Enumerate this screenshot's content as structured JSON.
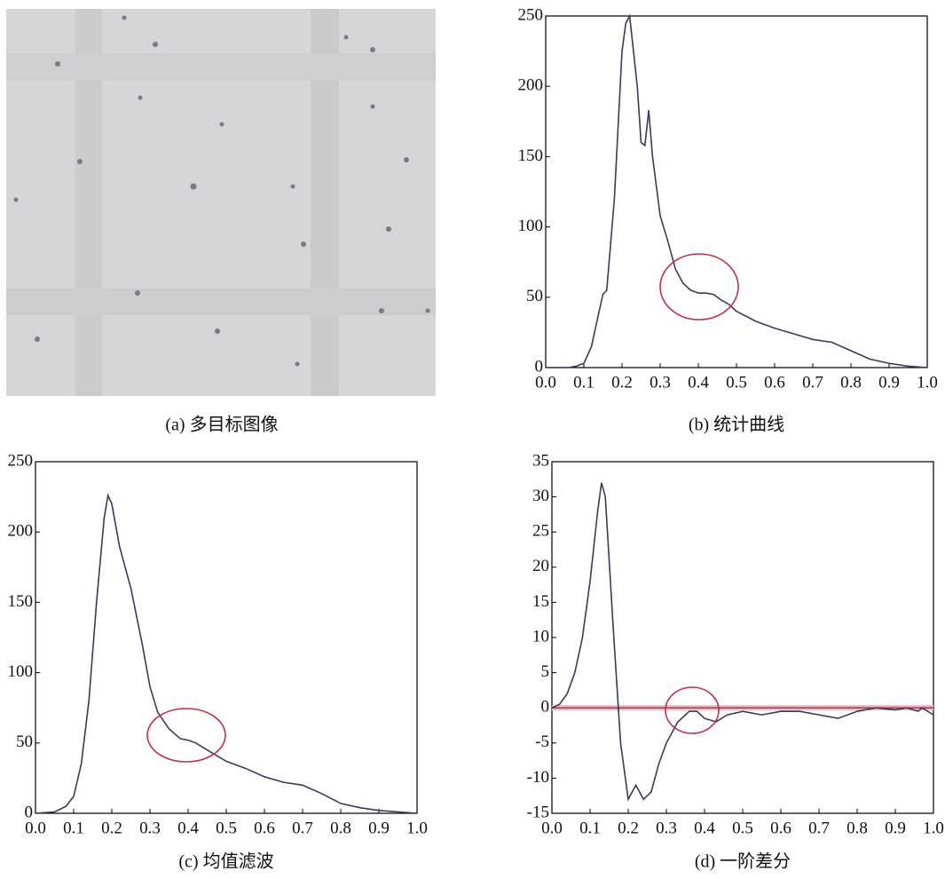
{
  "image_panel": {
    "caption": "(a) 多目标图像"
  },
  "chart_data": [
    {
      "type": "line",
      "title": "(b) 统计曲线",
      "color": "#3a3a5a",
      "grid": false,
      "x": [
        0,
        0.02,
        0.04,
        0.06,
        0.08,
        0.1,
        0.12,
        0.14,
        0.15,
        0.16,
        0.18,
        0.2,
        0.21,
        0.22,
        0.24,
        0.25,
        0.26,
        0.27,
        0.28,
        0.3,
        0.32,
        0.34,
        0.36,
        0.38,
        0.4,
        0.42,
        0.44,
        0.46,
        0.48,
        0.5,
        0.55,
        0.6,
        0.65,
        0.7,
        0.75,
        0.8,
        0.85,
        0.9,
        0.95,
        1.0
      ],
      "values": [
        0,
        0,
        0,
        0,
        1,
        3,
        15,
        40,
        52,
        55,
        120,
        225,
        245,
        250,
        200,
        160,
        158,
        183,
        150,
        108,
        90,
        70,
        60,
        55,
        53,
        53,
        52,
        48,
        45,
        40,
        33,
        28,
        24,
        20,
        18,
        12,
        6,
        3,
        1,
        0
      ],
      "xlim": [
        0,
        1
      ],
      "ylim": [
        0,
        250
      ],
      "xticks": [
        {
          "value": 0,
          "label": "0.0"
        },
        0.1,
        0.2,
        0.3,
        0.4,
        0.5,
        0.6,
        0.7,
        0.8,
        0.9,
        {
          "value": 1,
          "label": "1.0"
        }
      ],
      "yticks": [
        0,
        50,
        100,
        150,
        200,
        250
      ]
    },
    {
      "type": "line",
      "title": "(c) 均值滤波",
      "color": "#3a3a5a",
      "grid": false,
      "x": [
        0,
        0.05,
        0.08,
        0.1,
        0.12,
        0.14,
        0.16,
        0.18,
        0.19,
        0.2,
        0.22,
        0.25,
        0.28,
        0.3,
        0.32,
        0.35,
        0.38,
        0.4,
        0.42,
        0.45,
        0.5,
        0.55,
        0.6,
        0.65,
        0.7,
        0.75,
        0.8,
        0.85,
        0.9,
        0.95,
        1.0
      ],
      "values": [
        0,
        1,
        5,
        12,
        35,
        80,
        150,
        210,
        226,
        220,
        190,
        160,
        120,
        90,
        72,
        60,
        53,
        52,
        50,
        45,
        37,
        32,
        26,
        22,
        20,
        14,
        7,
        4,
        2,
        1,
        0
      ],
      "xlim": [
        0,
        1
      ],
      "ylim": [
        0,
        250
      ],
      "xticks": [
        {
          "value": 0,
          "label": "0.0"
        },
        0.1,
        0.2,
        0.3,
        0.4,
        0.5,
        0.6,
        0.7,
        0.8,
        0.9,
        {
          "value": 1,
          "label": "1.0"
        }
      ],
      "yticks": [
        0,
        50,
        100,
        150,
        200,
        250
      ]
    },
    {
      "type": "line",
      "title": "(d) 一阶差分",
      "color": "#3a3a5a",
      "grid": false,
      "x": [
        0,
        0.02,
        0.04,
        0.06,
        0.08,
        0.1,
        0.12,
        0.13,
        0.14,
        0.16,
        0.18,
        0.2,
        0.22,
        0.24,
        0.26,
        0.28,
        0.3,
        0.33,
        0.36,
        0.38,
        0.4,
        0.43,
        0.46,
        0.5,
        0.55,
        0.6,
        0.65,
        0.7,
        0.75,
        0.8,
        0.85,
        0.9,
        0.93,
        0.96,
        0.97,
        1.0
      ],
      "values": [
        0,
        0.5,
        2,
        5,
        10,
        18,
        28,
        32,
        30,
        12,
        -5,
        -13,
        -11,
        -13,
        -12,
        -8,
        -5,
        -2,
        -0.5,
        -0.5,
        -1.5,
        -2,
        -1,
        -0.5,
        -1,
        -0.5,
        -0.5,
        -1,
        -1.5,
        -0.5,
        0,
        -0.3,
        0,
        -0.5,
        0,
        -1
      ],
      "xlim": [
        0,
        1
      ],
      "ylim": [
        -15,
        35
      ],
      "xticks": [
        {
          "value": 0,
          "label": "0.0"
        },
        0.1,
        0.2,
        0.3,
        0.4,
        0.5,
        0.6,
        0.7,
        0.8,
        0.9,
        {
          "value": 1,
          "label": "1.0"
        }
      ],
      "yticks": [
        -15,
        -10,
        -5,
        0,
        5,
        10,
        15,
        20,
        25,
        30,
        35
      ]
    }
  ]
}
